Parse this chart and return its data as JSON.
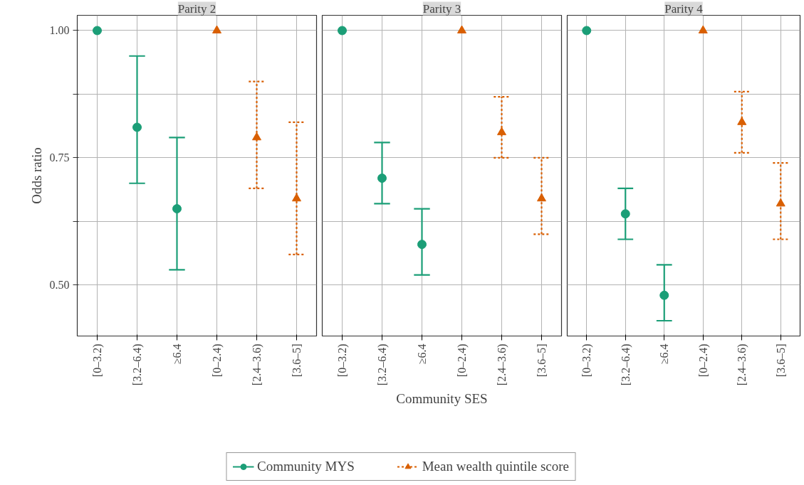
{
  "chart_data": [
    {
      "type": "scatter",
      "title": "Parity 2",
      "ylabel": "Odds ratio",
      "categories": [
        "[0–3.2)",
        "[3.2–6.4)",
        "≥6.4",
        "[0–2.4)",
        "[2.4–3.6)",
        "[3.6–5]"
      ],
      "ylim": [
        0.4,
        1.03
      ],
      "yticks": [
        {
          "value": 0.5,
          "label": "0.50"
        },
        {
          "value": 0.625,
          "label": null
        },
        {
          "value": 0.75,
          "label": "0.75"
        },
        {
          "value": 0.875,
          "label": null
        },
        {
          "value": 1.0,
          "label": "1.00"
        }
      ],
      "grid": true,
      "series": [
        {
          "color": "#1b9e77",
          "marker": "circle",
          "line_style": "solid",
          "values": [
            1.0,
            0.81,
            0.65,
            null,
            null,
            null
          ],
          "errors": [
            null,
            [
              0.7,
              0.95
            ],
            [
              0.53,
              0.79
            ],
            null,
            null,
            null
          ]
        },
        {
          "color": "#d95f02",
          "marker": "triangle",
          "line_style": "dashed",
          "values": [
            null,
            null,
            null,
            1.0,
            0.79,
            0.67
          ],
          "errors": [
            null,
            null,
            null,
            null,
            [
              0.69,
              0.9
            ],
            [
              0.56,
              0.82
            ]
          ]
        }
      ]
    },
    {
      "type": "scatter",
      "title": "Parity 3",
      "xlabel": "Community SES",
      "categories": [
        "[0–3.2)",
        "[3.2–6.4)",
        "≥6.4",
        "[0–2.4)",
        "[2.4–3.6)",
        "[3.6–5]"
      ],
      "ylim": [
        0.4,
        1.03
      ],
      "yticks": [
        0.5,
        {
          "value": 0.625,
          "label": null
        },
        0.75,
        {
          "value": 0.875,
          "label": null
        },
        1.0
      ],
      "tick_labels": "x",
      "grid": true,
      "legend": "bottom",
      "series": [
        {
          "name": "Community MYS",
          "color": "#1b9e77",
          "marker": "circle",
          "line_style": "solid",
          "values": [
            1.0,
            0.71,
            0.58,
            null,
            null,
            null
          ],
          "errors": [
            null,
            [
              0.66,
              0.78
            ],
            [
              0.52,
              0.65
            ],
            null,
            null,
            null
          ]
        },
        {
          "name": "Mean wealth quintile score",
          "color": "#d95f02",
          "marker": "triangle",
          "line_style": "dashed",
          "values": [
            null,
            null,
            null,
            1.0,
            0.8,
            0.67
          ],
          "errors": [
            null,
            null,
            null,
            null,
            [
              0.75,
              0.87
            ],
            [
              0.6,
              0.75
            ]
          ]
        }
      ]
    },
    {
      "type": "scatter",
      "title": "Parity 4",
      "categories": [
        "[0–3.2)",
        "[3.2–6.4)",
        "≥6.4",
        "[0–2.4)",
        "[2.4–3.6)",
        "[3.6–5]"
      ],
      "ylim": [
        0.4,
        1.03
      ],
      "yticks": [
        0.5,
        {
          "value": 0.625,
          "label": null
        },
        0.75,
        {
          "value": 0.875,
          "label": null
        },
        1.0
      ],
      "tick_labels": "x",
      "grid": true,
      "series": [
        {
          "color": "#1b9e77",
          "marker": "circle",
          "line_style": "solid",
          "values": [
            1.0,
            0.64,
            0.48,
            null,
            null,
            null
          ],
          "errors": [
            null,
            [
              0.59,
              0.69
            ],
            [
              0.43,
              0.54
            ],
            null,
            null,
            null
          ]
        },
        {
          "color": "#d95f02",
          "marker": "triangle",
          "line_style": "dashed",
          "values": [
            null,
            null,
            null,
            1.0,
            0.82,
            0.66
          ],
          "errors": [
            null,
            null,
            null,
            null,
            [
              0.76,
              0.88
            ],
            [
              0.59,
              0.74
            ]
          ]
        }
      ]
    }
  ]
}
